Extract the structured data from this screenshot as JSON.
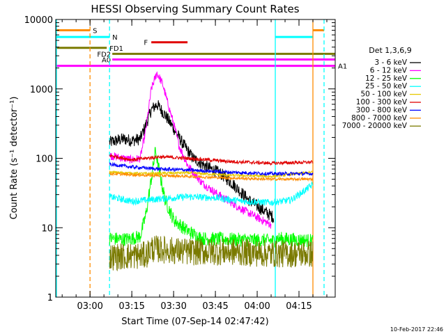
{
  "chart_data": {
    "type": "line",
    "title": "HESSI Observing Summary Count Rates",
    "xlabel": "Start Time (07-Sep-14 02:47:42)",
    "ylabel": "Count Rate (s⁻¹ detector⁻¹)",
    "yscale": "log",
    "ylim": [
      1,
      10000
    ],
    "xlim": [
      "02:47:42",
      "04:28:00"
    ],
    "x_ticks": [
      "03:00",
      "03:15",
      "03:30",
      "03:45",
      "04:00",
      "04:15"
    ],
    "y_ticks": [
      "1",
      "10",
      "100",
      "1000",
      "10000"
    ],
    "timestamp": "10-Feb-2017 22:46",
    "legend": {
      "title": "Det 1,3,6,9",
      "position": "right",
      "entries": [
        {
          "label": "3 - 6 keV",
          "color": "#000000"
        },
        {
          "label": "6 - 12 keV",
          "color": "#ff00ff"
        },
        {
          "label": "12 - 25 keV",
          "color": "#00ff00"
        },
        {
          "label": "25 - 50 keV",
          "color": "#00ffff"
        },
        {
          "label": "50 - 100 keV",
          "color": "#e6c800"
        },
        {
          "label": "100 - 300 keV",
          "color": "#e00000"
        },
        {
          "label": "300 - 800 keV",
          "color": "#0000ff"
        },
        {
          "label": "800 - 7000 keV",
          "color": "#ff8c00"
        },
        {
          "label": "7000 - 20000 keV",
          "color": "#7a7a00"
        }
      ]
    },
    "flags": [
      {
        "label": "S",
        "color": "#ff8c00",
        "segments": [
          [
            "02:47:42",
            "03:00:00"
          ],
          [
            "04:20:00",
            "04:24:00"
          ]
        ],
        "value": 7000
      },
      {
        "label": "N",
        "color": "#00ffff",
        "segments": [
          [
            "02:47:42",
            "03:07:00"
          ],
          [
            "04:06:30",
            "04:20:00"
          ]
        ],
        "value": 5600
      },
      {
        "label": "F",
        "color": "#e00000",
        "segments": [
          [
            "03:22:00",
            "03:35:00"
          ]
        ],
        "value": 4700
      },
      {
        "label": "FD1",
        "color": "#7a7a00",
        "segments": [
          [
            "02:47:42",
            "03:06:00"
          ]
        ],
        "value": 3900
      },
      {
        "label": "FD2",
        "color": "#7a7a00",
        "segments": [
          [
            "03:08:00",
            "04:28:00"
          ]
        ],
        "value": 3200
      },
      {
        "label": "A0",
        "color": "#ff00ff",
        "segments": [
          [
            "03:08:00",
            "04:28:00"
          ]
        ],
        "value": 2650
      },
      {
        "label": "A1",
        "color": "#ff00ff",
        "segments": [
          [
            "02:47:42",
            "04:28:00"
          ]
        ],
        "value": 2150
      }
    ],
    "vertical_lines": [
      {
        "time": "02:47:42",
        "color": "#00ffff",
        "style": "solid"
      },
      {
        "time": "03:00:00",
        "color": "#ff8c00",
        "style": "dashed"
      },
      {
        "time": "03:07:00",
        "color": "#00ffff",
        "style": "dashed"
      },
      {
        "time": "04:06:30",
        "color": "#00ffff",
        "style": "solid"
      },
      {
        "time": "04:20:00",
        "color": "#ff8c00",
        "style": "solid"
      },
      {
        "time": "04:24:00",
        "color": "#00ffff",
        "style": "dashed"
      }
    ],
    "series": [
      {
        "name": "3 - 6 keV",
        "color": "#000000",
        "noise": 0.09,
        "points": [
          [
            "03:07:00",
            170
          ],
          [
            "03:12:00",
            190
          ],
          [
            "03:15:00",
            180
          ],
          [
            "03:18:00",
            190
          ],
          [
            "03:20:00",
            300
          ],
          [
            "03:22:00",
            500
          ],
          [
            "03:24:00",
            600
          ],
          [
            "03:27:00",
            420
          ],
          [
            "03:30:00",
            270
          ],
          [
            "03:33:00",
            170
          ],
          [
            "03:37:00",
            100
          ],
          [
            "03:42:00",
            75
          ],
          [
            "03:47:00",
            60
          ],
          [
            "03:52:00",
            40
          ],
          [
            "03:57:00",
            25
          ],
          [
            "04:02:00",
            18
          ],
          [
            "04:06:00",
            14
          ]
        ]
      },
      {
        "name": "6 - 12 keV",
        "color": "#ff00ff",
        "noise": 0.06,
        "points": [
          [
            "03:07:00",
            110
          ],
          [
            "03:12:00",
            100
          ],
          [
            "03:15:00",
            95
          ],
          [
            "03:18:00",
            100
          ],
          [
            "03:20:00",
            250
          ],
          [
            "03:22:00",
            1000
          ],
          [
            "03:24:00",
            1700
          ],
          [
            "03:26:00",
            1200
          ],
          [
            "03:28:00",
            600
          ],
          [
            "03:30:00",
            320
          ],
          [
            "03:32:00",
            150
          ],
          [
            "03:35:00",
            80
          ],
          [
            "03:40:00",
            45
          ],
          [
            "03:45:00",
            32
          ],
          [
            "03:50:00",
            24
          ],
          [
            "03:55:00",
            18
          ],
          [
            "04:00:00",
            14
          ],
          [
            "04:05:00",
            11
          ]
        ]
      },
      {
        "name": "12 - 25 keV",
        "color": "#00ff00",
        "noise": 0.1,
        "points": [
          [
            "03:07:00",
            7
          ],
          [
            "03:12:00",
            6.8
          ],
          [
            "03:15:00",
            7
          ],
          [
            "03:18:00",
            7.5
          ],
          [
            "03:20:00",
            15
          ],
          [
            "03:22:00",
            50
          ],
          [
            "03:23:30",
            130
          ],
          [
            "03:25:00",
            60
          ],
          [
            "03:27:00",
            25
          ],
          [
            "03:30:00",
            13
          ],
          [
            "03:35:00",
            9
          ],
          [
            "03:40:00",
            7
          ],
          [
            "04:06:00",
            6.5
          ],
          [
            "04:07:00",
            7
          ],
          [
            "04:20:00",
            6.5
          ]
        ]
      },
      {
        "name": "25 - 50 keV",
        "color": "#00ffff",
        "noise": 0.05,
        "points": [
          [
            "03:07:00",
            28
          ],
          [
            "03:15:00",
            24
          ],
          [
            "03:25:00",
            26
          ],
          [
            "03:35:00",
            28
          ],
          [
            "03:45:00",
            27
          ],
          [
            "03:55:00",
            24
          ],
          [
            "04:05:00",
            23
          ],
          [
            "04:12:00",
            25
          ],
          [
            "04:16:00",
            32
          ],
          [
            "04:20:00",
            42
          ]
        ]
      },
      {
        "name": "50 - 100 keV",
        "color": "#e6c800",
        "noise": 0.02,
        "points": [
          [
            "03:07:00",
            63
          ],
          [
            "03:20:00",
            60
          ],
          [
            "03:35:00",
            62
          ],
          [
            "03:50:00",
            57
          ],
          [
            "04:05:00",
            55
          ],
          [
            "04:20:00",
            63
          ]
        ]
      },
      {
        "name": "100 - 300 keV",
        "color": "#e00000",
        "noise": 0.025,
        "points": [
          [
            "03:07:00",
            110
          ],
          [
            "03:15:00",
            95
          ],
          [
            "03:25:00",
            105
          ],
          [
            "03:35:00",
            100
          ],
          [
            "03:50:00",
            90
          ],
          [
            "04:05:00",
            85
          ],
          [
            "04:20:00",
            88
          ]
        ]
      },
      {
        "name": "300 - 800 keV",
        "color": "#0000ff",
        "noise": 0.025,
        "points": [
          [
            "03:07:00",
            82
          ],
          [
            "03:15:00",
            75
          ],
          [
            "03:25:00",
            70
          ],
          [
            "03:35:00",
            68
          ],
          [
            "03:50:00",
            63
          ],
          [
            "04:05:00",
            60
          ],
          [
            "04:20:00",
            60
          ]
        ]
      },
      {
        "name": "800 - 7000 keV",
        "color": "#ff8c00",
        "noise": 0.02,
        "points": [
          [
            "03:07:00",
            60
          ],
          [
            "03:20:00",
            57
          ],
          [
            "03:35:00",
            55
          ],
          [
            "03:50:00",
            52
          ],
          [
            "04:05:00",
            50
          ],
          [
            "04:20:00",
            50
          ]
        ]
      },
      {
        "name": "7000 - 20000 keV",
        "color": "#7a7a00",
        "noise": 0.2,
        "points": [
          [
            "03:07:00",
            3.8
          ],
          [
            "03:20:00",
            4
          ],
          [
            "03:22:00",
            5
          ],
          [
            "03:35:00",
            4.5
          ],
          [
            "03:50:00",
            4.5
          ],
          [
            "04:05:00",
            4.2
          ],
          [
            "04:20:00",
            4.2
          ]
        ]
      }
    ]
  }
}
